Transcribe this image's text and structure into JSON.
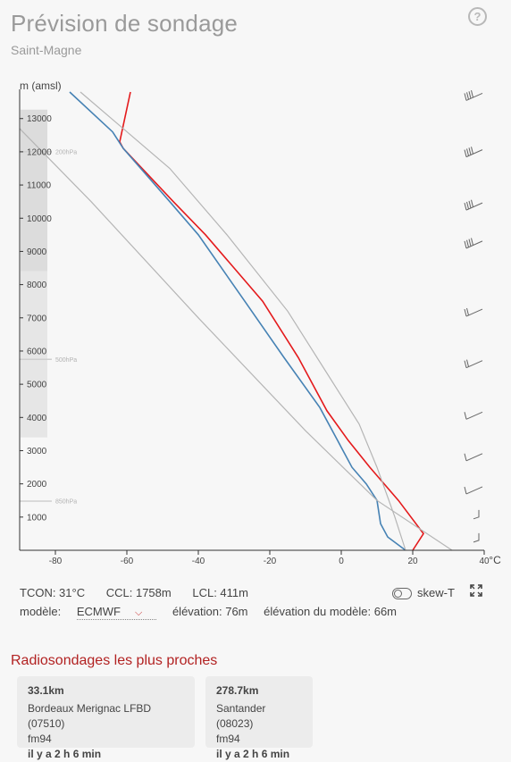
{
  "header": {
    "title": "Prévision de sondage",
    "location": "Saint-Magne",
    "help_icon": "question-circle-icon"
  },
  "chart_data": {
    "type": "line",
    "ylabel": "m (amsl)",
    "xlabel": "°C",
    "xlim": [
      -90,
      40
    ],
    "ylim": [
      0,
      13800
    ],
    "x_ticks": [
      -80,
      -60,
      -40,
      -20,
      0,
      20,
      40
    ],
    "y_ticks": [
      1000,
      2000,
      3000,
      4000,
      5000,
      6000,
      7000,
      8000,
      9000,
      10000,
      11000,
      12000,
      13000
    ],
    "pressure_levels": [
      {
        "label": "850hPa",
        "alt": 1480
      },
      {
        "label": "500hPa",
        "alt": 5750
      },
      {
        "label": "200hPa",
        "alt": 12000
      }
    ],
    "series": [
      {
        "color": "#e41a1c",
        "points": [
          [
            20,
            0
          ],
          [
            23,
            500
          ],
          [
            16,
            1500
          ],
          [
            8,
            2500
          ],
          [
            2,
            3300
          ],
          [
            -4,
            4200
          ],
          [
            -12,
            5800
          ],
          [
            -22,
            7500
          ],
          [
            -38,
            9500
          ],
          [
            -47,
            10500
          ],
          [
            -61,
            12100
          ],
          [
            -62,
            12300
          ],
          [
            -59,
            13800
          ]
        ]
      },
      {
        "color": "#4682b4",
        "points": [
          [
            18,
            0
          ],
          [
            13,
            400
          ],
          [
            11,
            800
          ],
          [
            10,
            1500
          ],
          [
            7,
            2000
          ],
          [
            3,
            2500
          ],
          [
            -1,
            3300
          ],
          [
            -6,
            4300
          ],
          [
            -16,
            5800
          ],
          [
            -27,
            7500
          ],
          [
            -40,
            9500
          ],
          [
            -48,
            10500
          ],
          [
            -61,
            12100
          ],
          [
            -64,
            12600
          ],
          [
            -76,
            13800
          ]
        ]
      },
      {
        "color": "#b5b5b5",
        "points": [
          [
            31,
            0
          ],
          [
            10,
            1500
          ],
          [
            -10,
            3600
          ],
          [
            -40,
            7000
          ],
          [
            -70,
            10500
          ],
          [
            -90,
            12700
          ]
        ]
      },
      {
        "color": "#b5b5b5",
        "points": [
          [
            18,
            0
          ],
          [
            15,
            1000
          ],
          [
            10,
            2500
          ],
          [
            5,
            3800
          ],
          [
            -5,
            5500
          ],
          [
            -15,
            7200
          ],
          [
            -32,
            9500
          ],
          [
            -48,
            11500
          ],
          [
            -73,
            13800
          ]
        ]
      }
    ],
    "wind_barbs_alt": [
      13600,
      11900,
      10300,
      9150,
      7100,
      5550,
      4000,
      2750,
      1750,
      1000,
      300
    ]
  },
  "stats": {
    "tcon": "TCON: 31°C",
    "ccl": "CCL: 1758m",
    "lcl": "LCL: 411m",
    "model_label": "modèle:",
    "model_value": "ECMWF",
    "elevation": "élévation: 76m",
    "model_elevation": "élévation du modèle: 66m",
    "skew_label": "skew-T"
  },
  "nearby": {
    "title": "Radiosondages les plus proches",
    "cards": [
      {
        "distance": "33.1km",
        "station": "Bordeaux Merignac LFBD (07510)",
        "model": "fm94",
        "when": "il y a 2 h 6 min"
      },
      {
        "distance": "278.7km",
        "station": "Santander (08023)",
        "model": "fm94",
        "when": "il y a 2 h 6 min"
      }
    ]
  }
}
